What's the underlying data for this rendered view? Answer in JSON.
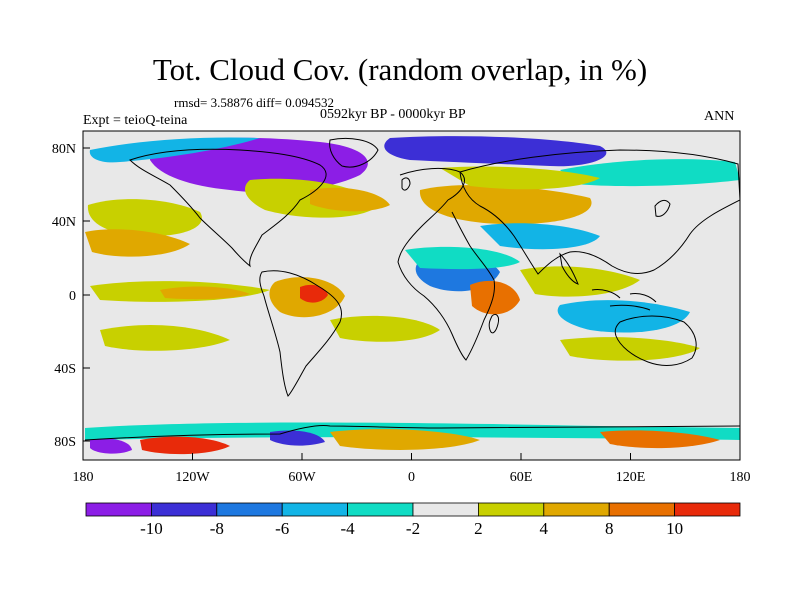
{
  "title": "Tot. Cloud Cov. (random overlap, in %)",
  "stats_text": "rmsd= 3.58876 diff= 0.094532",
  "period_text": "0592kyr BP - 0000kyr BP",
  "experiment_text": "Expt = teioQ-teina",
  "season_text": "ANN",
  "map": {
    "lat_ticks": [
      "80N",
      "40N",
      "0",
      "40S",
      "80S"
    ],
    "lon_ticks": [
      "180",
      "120W",
      "60W",
      "0",
      "60E",
      "120E",
      "180"
    ],
    "background_color": "#e8e8e8",
    "coastline_color": "#000000"
  },
  "colorbar": {
    "labels": [
      "-10",
      "-8",
      "-6",
      "-4",
      "-2",
      "2",
      "4",
      "8",
      "10"
    ],
    "colors": [
      "#8c1ee6",
      "#3c2fd6",
      "#1e78e0",
      "#12b4e6",
      "#10dcc4",
      "#e8e8e8",
      "#c8d000",
      "#e0a800",
      "#e87000",
      "#e82a0a"
    ]
  }
}
